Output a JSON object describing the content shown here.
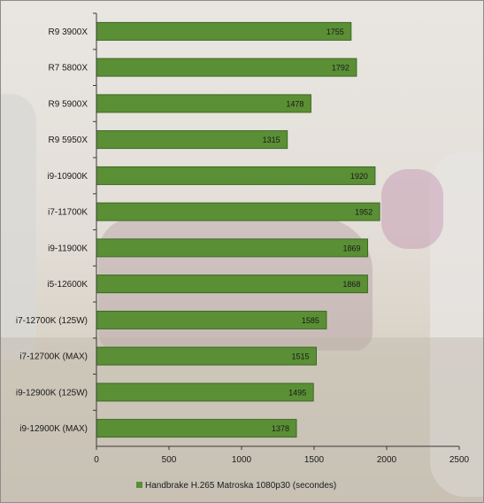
{
  "chart_data": {
    "type": "bar",
    "orientation": "horizontal",
    "categories": [
      "R9 3900X",
      "R7 5800X",
      "R9 5900X",
      "R9 5950X",
      "i9-10900K",
      "i7-11700K",
      "i9-11900K",
      "i5-12600K",
      "i7-12700K (125W)",
      "i7-12700K (MAX)",
      "i9-12900K (125W)",
      "i9-12900K (MAX)"
    ],
    "series": [
      {
        "name": "Handbrake H.265 Matroska 1080p30 (secondes)",
        "values": [
          1755,
          1792,
          1478,
          1315,
          1920,
          1952,
          1869,
          1868,
          1585,
          1515,
          1495,
          1378
        ]
      }
    ],
    "xlim": [
      0,
      2500
    ],
    "xticks": [
      "0",
      "500",
      "1000",
      "1500",
      "2000",
      "2500"
    ],
    "grid": false,
    "legend_position": "bottom",
    "colors": {
      "bar_fill": "#5a8f35",
      "bar_stroke": "#3e6824",
      "axis": "#3a3a3a",
      "legend_swatch": "#5a8f35"
    }
  }
}
